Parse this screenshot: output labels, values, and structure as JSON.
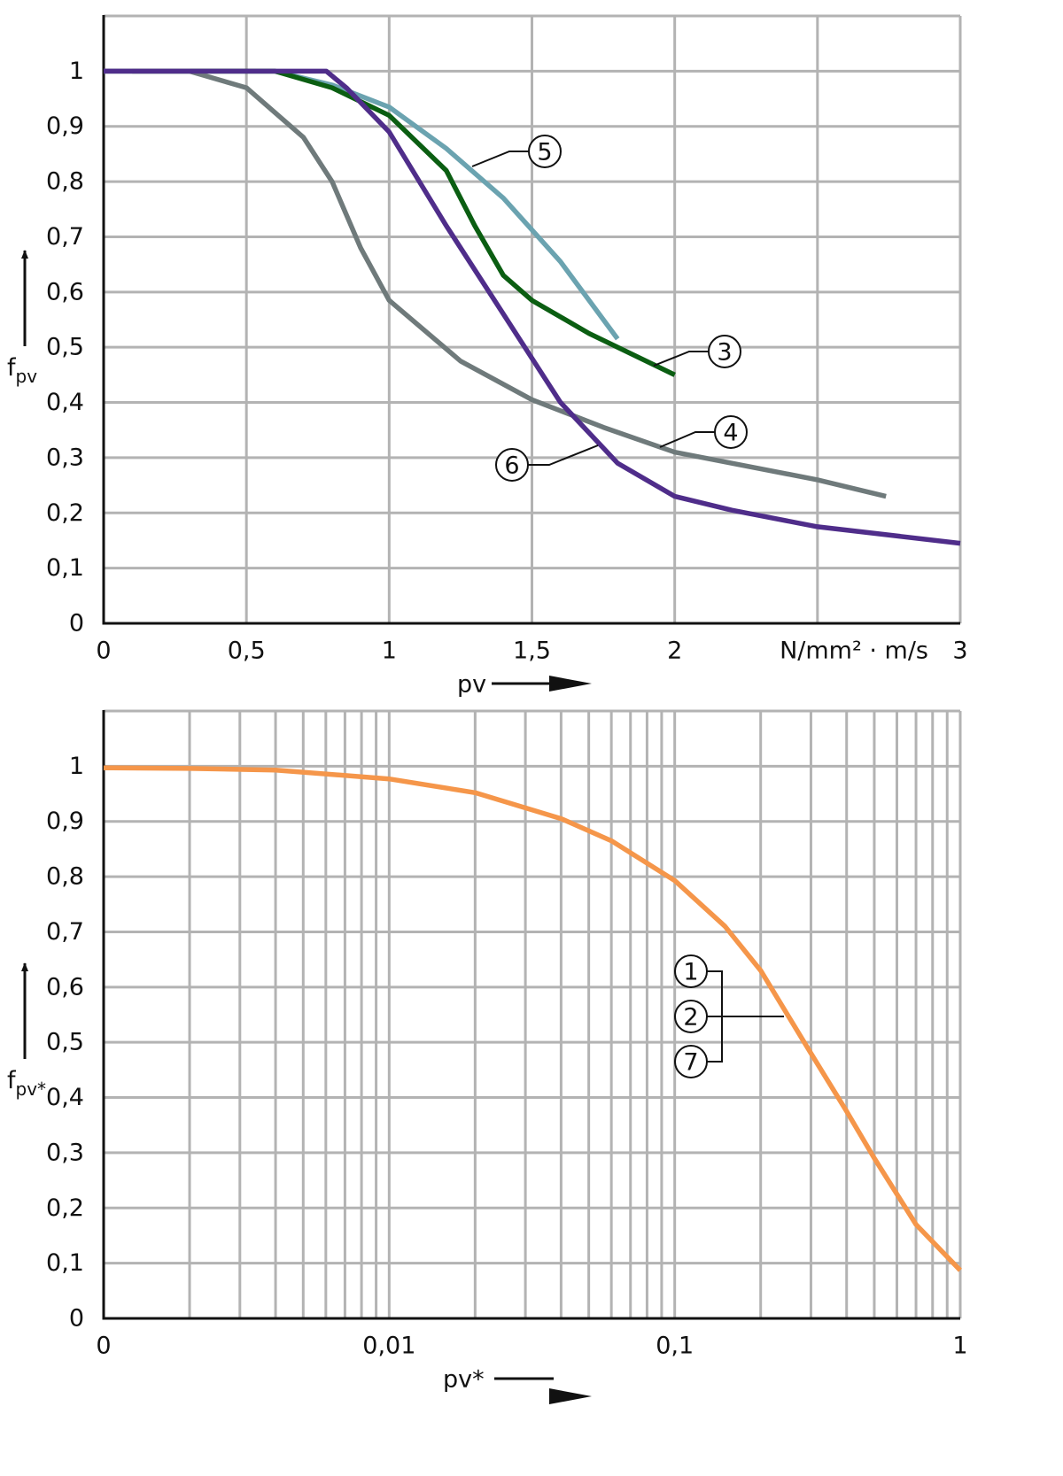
{
  "chart_data": [
    {
      "type": "line",
      "ylabel": "f",
      "ylabel_sub": "pv",
      "xlabel": "pv",
      "x_unit": "N/mm² · m/s",
      "xlim": [
        0,
        3
      ],
      "ylim": [
        0,
        1.1
      ],
      "grid": true,
      "xticks": [
        0,
        {
          "value": 0.5,
          "label": "0,5"
        },
        1,
        {
          "value": 1.5,
          "label": "1,5"
        },
        2,
        {
          "value": 2.5,
          "label": null
        },
        3
      ],
      "yticks": [
        0,
        {
          "value": 0.1,
          "label": "0,1"
        },
        {
          "value": 0.2,
          "label": "0,2"
        },
        {
          "value": 0.3,
          "label": "0,3"
        },
        {
          "value": 0.4,
          "label": "0,4"
        },
        {
          "value": 0.5,
          "label": "0,5"
        },
        {
          "value": 0.6,
          "label": "0,6"
        },
        {
          "value": 0.7,
          "label": "0,7"
        },
        {
          "value": 0.8,
          "label": "0,8"
        },
        {
          "value": 0.9,
          "label": "0,9"
        },
        1
      ],
      "series": [
        {
          "name": "5",
          "color": "#6ba3b0",
          "x": [
            0,
            0.3,
            0.6,
            0.8,
            1.0,
            1.2,
            1.4,
            1.6,
            1.8
          ],
          "values": [
            1.0,
            1.0,
            1.0,
            0.975,
            0.935,
            0.86,
            0.77,
            0.655,
            0.515
          ]
        },
        {
          "name": "3",
          "color": "#0b5e12",
          "x": [
            0.1,
            0.4,
            0.6,
            0.8,
            1.0,
            1.2,
            1.3,
            1.4,
            1.5,
            1.7,
            2.0
          ],
          "values": [
            1.0,
            1.0,
            1.0,
            0.97,
            0.92,
            0.82,
            0.72,
            0.63,
            0.585,
            0.525,
            0.45
          ]
        },
        {
          "name": "4",
          "color": "#6f7a7b",
          "x": [
            0,
            0.3,
            0.5,
            0.7,
            0.8,
            0.9,
            1.0,
            1.25,
            1.5,
            1.75,
            2.0,
            2.5,
            2.74
          ],
          "values": [
            1.0,
            1.0,
            0.97,
            0.88,
            0.8,
            0.68,
            0.585,
            0.475,
            0.405,
            0.355,
            0.31,
            0.26,
            0.23
          ]
        },
        {
          "name": "6",
          "color": "#4f2d8a",
          "x": [
            0,
            0.5,
            0.78,
            0.85,
            1.0,
            1.2,
            1.4,
            1.6,
            1.8,
            2.0,
            2.2,
            2.5,
            3.0
          ],
          "values": [
            1.0,
            1.0,
            1.0,
            0.97,
            0.89,
            0.72,
            0.56,
            0.4,
            0.29,
            0.23,
            0.205,
            0.175,
            0.145
          ]
        }
      ]
    },
    {
      "type": "line",
      "xscale": "log",
      "ylabel": "f",
      "ylabel_sub": "pv*",
      "xlabel": "pv*",
      "xlim": [
        0.001,
        1
      ],
      "ylim": [
        0,
        1.1
      ],
      "grid": true,
      "xticks": [
        {
          "value": 0.001,
          "label": "0"
        },
        {
          "value": 0.01,
          "label": "0,01"
        },
        {
          "value": 0.1,
          "label": "0,1"
        },
        1
      ],
      "xminor": [
        0.002,
        0.003,
        0.004,
        0.005,
        0.006,
        0.007,
        0.008,
        0.009,
        0.02,
        0.03,
        0.04,
        0.05,
        0.06,
        0.07,
        0.08,
        0.09,
        0.2,
        0.3,
        0.4,
        0.5,
        0.6,
        0.7,
        0.8,
        0.9
      ],
      "yticks": [
        0,
        {
          "value": 0.1,
          "label": "0,1"
        },
        {
          "value": 0.2,
          "label": "0,2"
        },
        {
          "value": 0.3,
          "label": "0,3"
        },
        {
          "value": 0.4,
          "label": "0,4"
        },
        {
          "value": 0.5,
          "label": "0,5"
        },
        {
          "value": 0.6,
          "label": "0,6"
        },
        {
          "value": 0.7,
          "label": "0,7"
        },
        {
          "value": 0.8,
          "label": "0,8"
        },
        {
          "value": 0.9,
          "label": "0,9"
        },
        1
      ],
      "series": [
        {
          "labels": [
            "1",
            "2",
            "7"
          ],
          "color": "#f5964a",
          "x": [
            0.001,
            0.002,
            0.004,
            0.01,
            0.02,
            0.04,
            0.06,
            0.1,
            0.15,
            0.2,
            0.3,
            0.4,
            0.5,
            0.7,
            1
          ],
          "values": [
            0.997,
            0.996,
            0.993,
            0.977,
            0.952,
            0.905,
            0.865,
            0.793,
            0.71,
            0.63,
            0.48,
            0.375,
            0.29,
            0.17,
            0.087
          ]
        }
      ]
    }
  ]
}
